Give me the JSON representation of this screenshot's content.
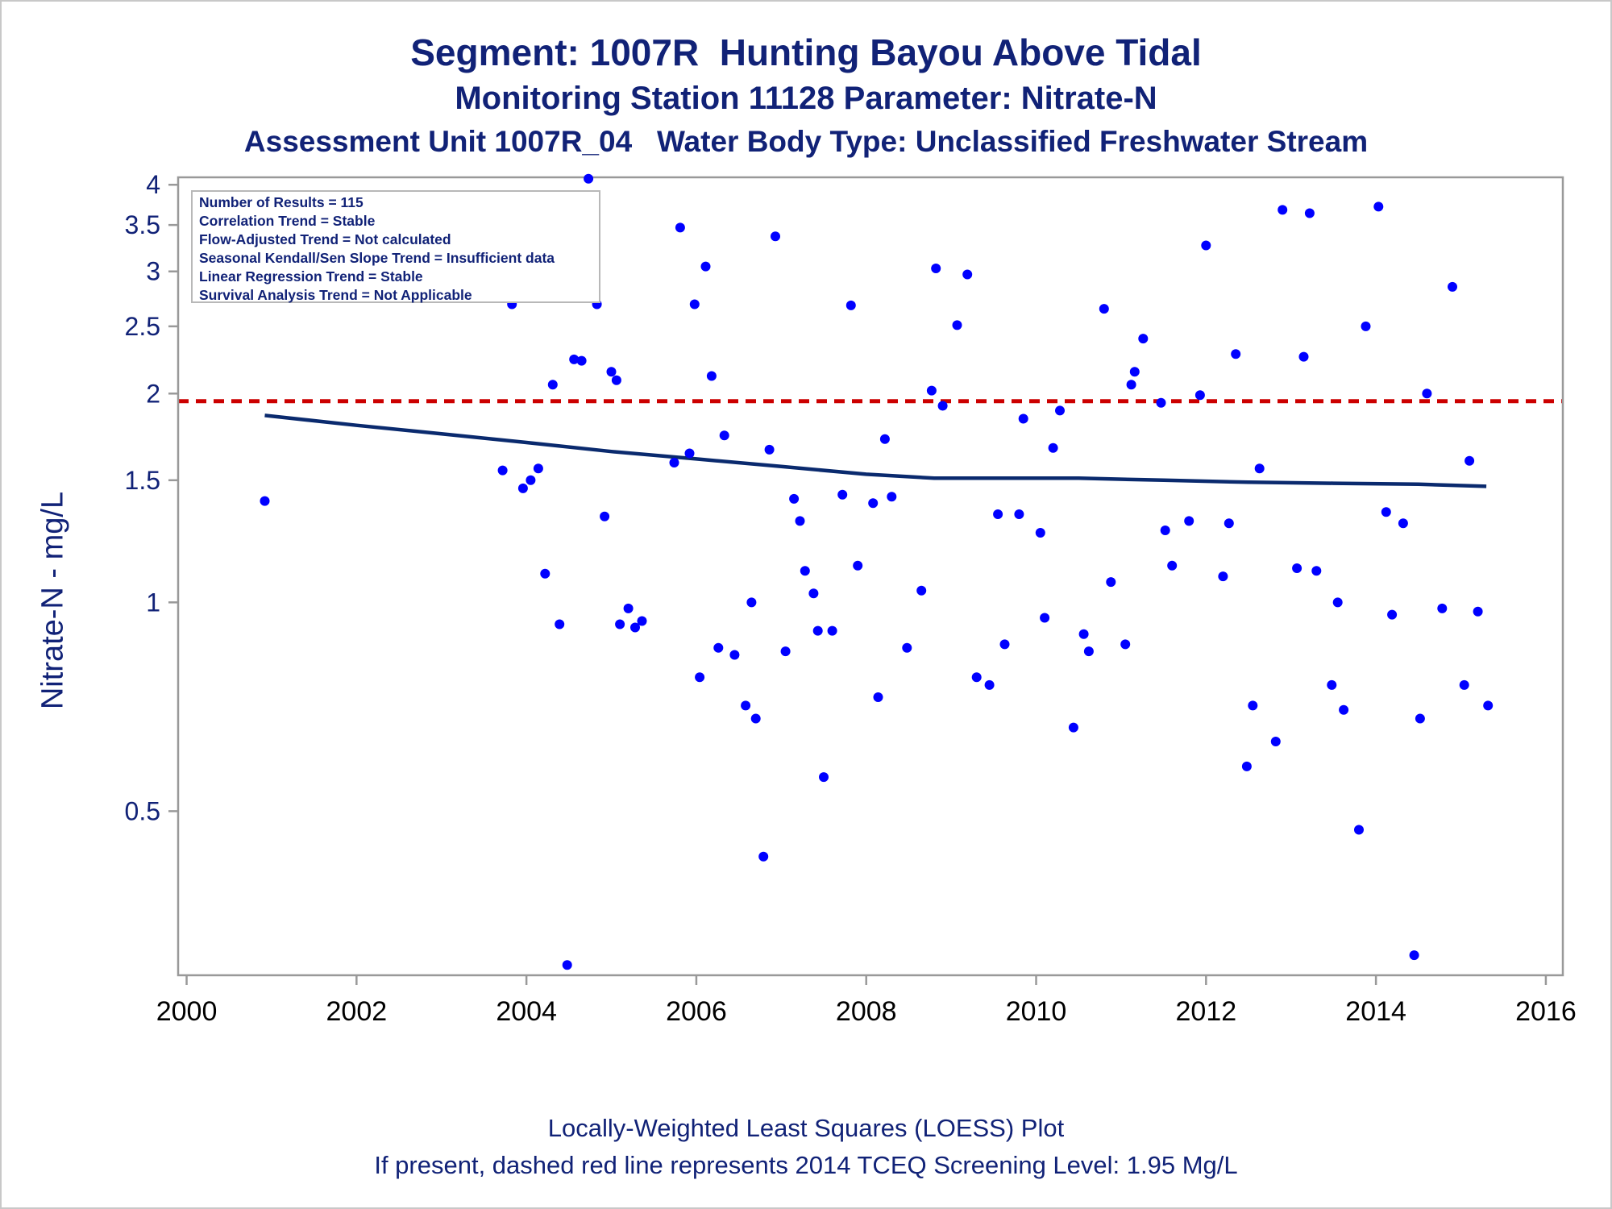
{
  "titles": {
    "line1": "Segment: 1007R  Hunting Bayou Above Tidal",
    "line2": "Monitoring Station 11128 Parameter: Nitrate-N",
    "line3": "Assessment Unit 1007R_04   Water Body Type: Unclassified Freshwater Stream"
  },
  "footnotes": {
    "line1": "Locally-Weighted Least Squares (LOESS) Plot",
    "line2": "If present, dashed red line represents 2014 TCEQ Screening Level: 1.95 Mg/L"
  },
  "stats": [
    "Number of Results = 115",
    "Correlation Trend = Stable",
    "Flow-Adjusted Trend = Not calculated",
    "Seasonal Kendall/Sen Slope Trend = Insufficient data",
    "Linear Regression Trend = Stable",
    "Survival Analysis Trend = Not Applicable"
  ],
  "colors": {
    "text": "#112277",
    "points": "#0000ff",
    "loess": "#0a2a6e",
    "screening": "#cc0000",
    "axis": "#999999"
  },
  "chart_data": {
    "type": "scatter",
    "ylabel": "Nitrate-N - mg/L",
    "xlabel": "",
    "y_scale": "log",
    "xlim": [
      1999.9,
      2016.2
    ],
    "ylim": [
      0.29,
      4.1
    ],
    "x_ticks": [
      2000,
      2002,
      2004,
      2006,
      2008,
      2010,
      2012,
      2014,
      2016
    ],
    "y_ticks": [
      0.5,
      1,
      1.5,
      2,
      2.5,
      3,
      3.5,
      4
    ],
    "y_tick_labels": [
      "0.5",
      "1",
      "1.5",
      "2",
      "2.5",
      "3",
      "3.5",
      "4"
    ],
    "screening_level": 1.95,
    "points": [
      [
        2000.92,
        1.4
      ],
      [
        2003.72,
        1.55
      ],
      [
        2003.83,
        2.69
      ],
      [
        2003.88,
        2.91
      ],
      [
        2003.96,
        1.46
      ],
      [
        2004.05,
        1.5
      ],
      [
        2004.14,
        1.56
      ],
      [
        2004.22,
        1.1
      ],
      [
        2004.31,
        2.06
      ],
      [
        2004.39,
        0.93
      ],
      [
        2004.48,
        0.3
      ],
      [
        2004.56,
        2.24
      ],
      [
        2004.65,
        2.23
      ],
      [
        2004.73,
        4.08
      ],
      [
        2004.83,
        2.69
      ],
      [
        2004.92,
        1.33
      ],
      [
        2005.0,
        2.15
      ],
      [
        2005.06,
        2.09
      ],
      [
        2005.1,
        0.93
      ],
      [
        2005.2,
        0.98
      ],
      [
        2005.28,
        0.92
      ],
      [
        2005.36,
        0.94
      ],
      [
        2005.74,
        1.59
      ],
      [
        2005.81,
        3.47
      ],
      [
        2005.92,
        1.64
      ],
      [
        2005.98,
        2.69
      ],
      [
        2006.04,
        0.78
      ],
      [
        2006.11,
        3.05
      ],
      [
        2006.18,
        2.12
      ],
      [
        2006.26,
        0.86
      ],
      [
        2006.33,
        1.74
      ],
      [
        2006.45,
        0.84
      ],
      [
        2006.58,
        0.71
      ],
      [
        2006.65,
        1.0
      ],
      [
        2006.7,
        0.68
      ],
      [
        2006.79,
        0.43
      ],
      [
        2006.86,
        1.66
      ],
      [
        2006.93,
        3.37
      ],
      [
        2007.05,
        0.85
      ],
      [
        2007.15,
        1.41
      ],
      [
        2007.22,
        1.31
      ],
      [
        2007.28,
        1.11
      ],
      [
        2007.38,
        1.03
      ],
      [
        2007.43,
        0.91
      ],
      [
        2007.5,
        0.56
      ],
      [
        2007.6,
        0.91
      ],
      [
        2007.72,
        1.43
      ],
      [
        2007.82,
        2.68
      ],
      [
        2007.9,
        1.13
      ],
      [
        2008.08,
        1.39
      ],
      [
        2008.14,
        0.73
      ],
      [
        2008.22,
        1.72
      ],
      [
        2008.3,
        1.42
      ],
      [
        2008.48,
        0.86
      ],
      [
        2008.65,
        1.04
      ],
      [
        2008.77,
        2.02
      ],
      [
        2008.82,
        3.03
      ],
      [
        2008.9,
        1.92
      ],
      [
        2009.07,
        2.51
      ],
      [
        2009.19,
        2.97
      ],
      [
        2009.3,
        0.78
      ],
      [
        2009.45,
        0.76
      ],
      [
        2009.55,
        1.34
      ],
      [
        2009.63,
        0.87
      ],
      [
        2009.8,
        1.34
      ],
      [
        2009.85,
        1.84
      ],
      [
        2010.05,
        1.26
      ],
      [
        2010.1,
        0.95
      ],
      [
        2010.2,
        1.67
      ],
      [
        2010.28,
        1.89
      ],
      [
        2010.44,
        0.66
      ],
      [
        2010.56,
        0.9
      ],
      [
        2010.62,
        0.85
      ],
      [
        2010.8,
        2.65
      ],
      [
        2010.88,
        1.07
      ],
      [
        2011.05,
        0.87
      ],
      [
        2011.12,
        2.06
      ],
      [
        2011.16,
        2.15
      ],
      [
        2011.26,
        2.4
      ],
      [
        2011.47,
        1.94
      ],
      [
        2011.52,
        1.27
      ],
      [
        2011.6,
        1.13
      ],
      [
        2011.8,
        1.31
      ],
      [
        2011.93,
        1.99
      ],
      [
        2012.0,
        3.27
      ],
      [
        2012.2,
        1.09
      ],
      [
        2012.27,
        1.3
      ],
      [
        2012.35,
        2.28
      ],
      [
        2012.48,
        0.58
      ],
      [
        2012.55,
        0.71
      ],
      [
        2012.63,
        1.56
      ],
      [
        2012.82,
        0.63
      ],
      [
        2012.9,
        3.68
      ],
      [
        2013.07,
        1.12
      ],
      [
        2013.15,
        2.26
      ],
      [
        2013.22,
        3.64
      ],
      [
        2013.3,
        1.11
      ],
      [
        2013.48,
        0.76
      ],
      [
        2013.55,
        1.0
      ],
      [
        2013.62,
        0.7
      ],
      [
        2013.8,
        0.47
      ],
      [
        2013.88,
        2.5
      ],
      [
        2014.03,
        3.72
      ],
      [
        2014.12,
        1.35
      ],
      [
        2014.19,
        0.96
      ],
      [
        2014.32,
        1.3
      ],
      [
        2014.45,
        0.31
      ],
      [
        2014.52,
        0.68
      ],
      [
        2014.6,
        2.0
      ],
      [
        2014.78,
        0.98
      ],
      [
        2014.9,
        2.85
      ],
      [
        2015.04,
        0.76
      ],
      [
        2015.1,
        1.6
      ],
      [
        2015.2,
        0.97
      ],
      [
        2015.32,
        0.71
      ]
    ],
    "loess_curve": {
      "x": [
        2000.92,
        2002.0,
        2003.0,
        2004.0,
        2005.0,
        2006.0,
        2007.0,
        2008.0,
        2008.8,
        2009.5,
        2010.5,
        2011.5,
        2012.5,
        2013.5,
        2014.5,
        2015.3
      ],
      "y": [
        1.86,
        1.8,
        1.75,
        1.7,
        1.65,
        1.61,
        1.57,
        1.53,
        1.51,
        1.51,
        1.51,
        1.5,
        1.49,
        1.485,
        1.48,
        1.47
      ]
    }
  }
}
